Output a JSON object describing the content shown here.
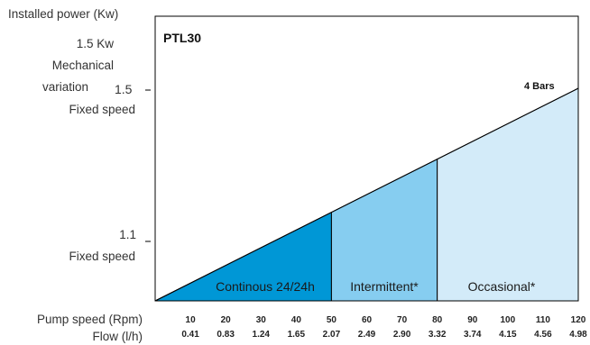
{
  "chart_data": {
    "type": "area",
    "title": "PTL30",
    "y_axis": {
      "title": "Installed power (Kw)",
      "ticks": [
        {
          "value": 1.5,
          "label": "1.5",
          "description": [
            "1.5 Kw",
            "Mechanical",
            "variation"
          ],
          "sub": "Fixed speed"
        },
        {
          "value": 1.1,
          "label": "1.1",
          "sub": "Fixed speed"
        }
      ]
    },
    "x_axis": {
      "speed_label": "Pump speed (Rpm)",
      "flow_label": "Flow (l/h)",
      "range": [
        0,
        120
      ],
      "speed_ticks": [
        "10",
        "20",
        "30",
        "40",
        "50",
        "60",
        "70",
        "80",
        "90",
        "100",
        "110",
        "120"
      ],
      "flow_ticks": [
        "0.41",
        "0.83",
        "1.24",
        "1.65",
        "2.07",
        "2.49",
        "2.90",
        "3.32",
        "3.74",
        "4.15",
        "4.56",
        "4.98"
      ]
    },
    "curve": {
      "label": "4 Bars",
      "points": [
        [
          0,
          0
        ],
        [
          120,
          1
        ]
      ]
    },
    "regions": [
      {
        "label": "Continous 24/24h",
        "x_start": 0,
        "x_end": 50,
        "color": "#0097d6"
      },
      {
        "label": "Intermittent*",
        "x_start": 50,
        "x_end": 80,
        "color": "#86cdf0"
      },
      {
        "label": "Occasional*",
        "x_start": 80,
        "x_end": 120,
        "color": "#d3ebf9"
      }
    ]
  }
}
